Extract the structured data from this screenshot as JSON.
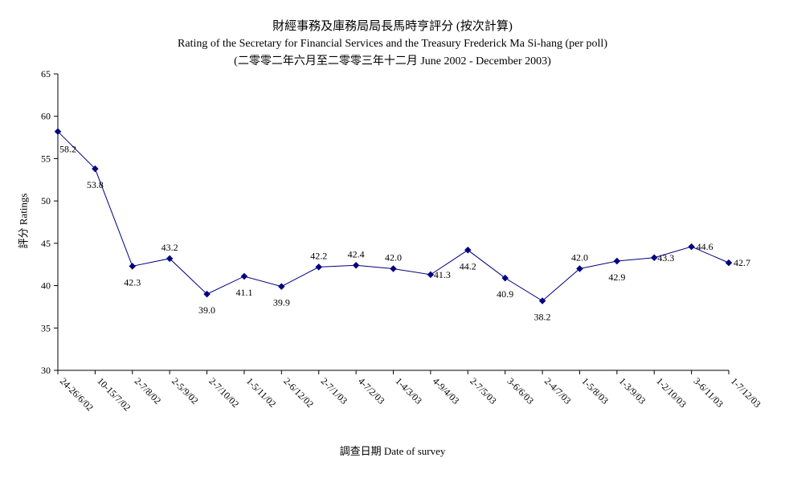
{
  "chart_data": {
    "type": "line",
    "title": "財經事務及庫務局局長馬時亨評分 (按次計算)",
    "subtitle": "Rating of the Secretary for Financial Services and the Treasury Frederick Ma Si-hang  (per poll)",
    "subtitle2": "(二零零二年六月至二零零三年十二月 June 2002 - December 2003)",
    "xlabel": "調查日期 Date of survey",
    "ylabel": "評分 Ratings",
    "ylim": [
      30,
      65
    ],
    "yticks": [
      30,
      35,
      40,
      45,
      50,
      55,
      60,
      65
    ],
    "grid": false,
    "categories": [
      "24-26/6/02",
      "10-15/7/02",
      "2-7/8/02",
      "2-5/9/02",
      "2-7/10/02",
      "1-5/11/02",
      "2-6/12/02",
      "2-7/1/03",
      "4-7/2/03",
      "1-4/3/03",
      "4-9/4/03",
      "2-7/5/03",
      "3-6/6/03",
      "2-4/7/03",
      "1-5/8/03",
      "1-3/9/03",
      "1-2/10/03",
      "3-6/11/03",
      "1-7/12/03"
    ],
    "series": [
      {
        "values": [
          58.2,
          53.8,
          42.3,
          43.2,
          39.0,
          41.1,
          39.9,
          42.2,
          42.4,
          42.0,
          41.3,
          44.2,
          40.9,
          38.2,
          42.0,
          42.9,
          43.3,
          44.6,
          42.7
        ],
        "labels": [
          "58.2",
          "53.8",
          "42.3",
          "43.2",
          "39.0",
          "41.1",
          "39.9",
          "42.2",
          "42.4",
          "42.0",
          "41.3",
          "44.2",
          "40.9",
          "38.2",
          "42.0",
          "42.9",
          "43.3",
          "44.6",
          "42.7"
        ],
        "color": "#000080"
      }
    ]
  }
}
